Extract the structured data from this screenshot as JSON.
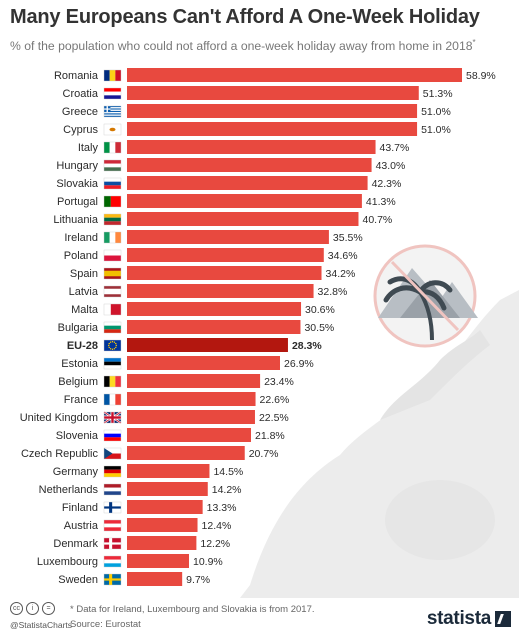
{
  "header": {
    "title": "Many Europeans Can't Afford A One-Week Holiday",
    "subtitle": "% of the population who could not afford a one-week holiday away from home in 2018",
    "subtitle_mark": "*"
  },
  "chart_data": {
    "type": "bar",
    "orientation": "horizontal",
    "xlim": [
      0,
      60
    ],
    "categories": [
      "Romania",
      "Croatia",
      "Greece",
      "Cyprus",
      "Italy",
      "Hungary",
      "Slovakia",
      "Portugal",
      "Lithuania",
      "Ireland",
      "Poland",
      "Spain",
      "Latvia",
      "Malta",
      "Bulgaria",
      "EU-28",
      "Estonia",
      "Belgium",
      "France",
      "United Kingdom",
      "Slovenia",
      "Czech Republic",
      "Germany",
      "Netherlands",
      "Finland",
      "Austria",
      "Denmark",
      "Luxembourg",
      "Sweden"
    ],
    "values": [
      58.9,
      51.3,
      51.0,
      51.0,
      43.7,
      43.0,
      42.3,
      41.3,
      40.7,
      35.5,
      34.6,
      34.2,
      32.8,
      30.6,
      30.5,
      28.3,
      26.9,
      23.4,
      22.6,
      22.5,
      21.8,
      20.7,
      14.5,
      14.2,
      13.3,
      12.4,
      12.2,
      10.9,
      9.7
    ],
    "labels": [
      "58.9%",
      "51.3%",
      "51.0%",
      "51.0%",
      "43.7%",
      "43.0%",
      "42.3%",
      "41.3%",
      "40.7%",
      "35.5%",
      "34.6%",
      "34.2%",
      "32.8%",
      "30.6%",
      "30.5%",
      "28.3%",
      "26.9%",
      "23.4%",
      "22.6%",
      "22.5%",
      "21.8%",
      "20.7%",
      "14.5%",
      "14.2%",
      "13.3%",
      "12.4%",
      "12.2%",
      "10.9%",
      "9.7%"
    ],
    "highlight": "EU-28",
    "bar_color": "#e8493f",
    "highlight_color": "#b3170f"
  },
  "flags": {
    "Romania": {
      "type": "v",
      "colors": [
        "#002b7f",
        "#fcd116",
        "#ce1126"
      ]
    },
    "Croatia": {
      "type": "h",
      "colors": [
        "#ff0000",
        "#ffffff",
        "#171796"
      ]
    },
    "Greece": {
      "type": "greece",
      "colors": [
        "#0d5eaf",
        "#ffffff"
      ]
    },
    "Cyprus": {
      "type": "plain",
      "colors": [
        "#ffffff",
        "#d57800"
      ]
    },
    "Italy": {
      "type": "v",
      "colors": [
        "#009246",
        "#ffffff",
        "#ce2b37"
      ]
    },
    "Hungary": {
      "type": "h",
      "colors": [
        "#ce2939",
        "#ffffff",
        "#477050"
      ]
    },
    "Slovakia": {
      "type": "h",
      "colors": [
        "#ffffff",
        "#0b4ea2",
        "#ee1c25"
      ]
    },
    "Portugal": {
      "type": "v2",
      "colors": [
        "#006600",
        "#ff0000"
      ]
    },
    "Lithuania": {
      "type": "h",
      "colors": [
        "#fdb913",
        "#006a44",
        "#c1272d"
      ]
    },
    "Ireland": {
      "type": "v",
      "colors": [
        "#169b62",
        "#ffffff",
        "#ff883e"
      ]
    },
    "Poland": {
      "type": "h2",
      "colors": [
        "#ffffff",
        "#dc143c"
      ]
    },
    "Spain": {
      "type": "hs",
      "colors": [
        "#aa151b",
        "#f1bf00",
        "#aa151b"
      ]
    },
    "Latvia": {
      "type": "hs",
      "colors": [
        "#9e3039",
        "#ffffff",
        "#9e3039"
      ]
    },
    "Malta": {
      "type": "v2",
      "colors": [
        "#ffffff",
        "#cf142b"
      ]
    },
    "Bulgaria": {
      "type": "h",
      "colors": [
        "#ffffff",
        "#00966e",
        "#d62612"
      ]
    },
    "EU-28": {
      "type": "eu",
      "colors": [
        "#003399",
        "#ffcc00"
      ]
    },
    "Estonia": {
      "type": "h",
      "colors": [
        "#0072ce",
        "#000000",
        "#ffffff"
      ]
    },
    "Belgium": {
      "type": "v",
      "colors": [
        "#000000",
        "#fdda24",
        "#ef3340"
      ]
    },
    "France": {
      "type": "v",
      "colors": [
        "#0055a4",
        "#ffffff",
        "#ef4135"
      ]
    },
    "United Kingdom": {
      "type": "uk",
      "colors": [
        "#012169",
        "#ffffff",
        "#c8102e"
      ]
    },
    "Slovenia": {
      "type": "h",
      "colors": [
        "#ffffff",
        "#0000ff",
        "#ff0000"
      ]
    },
    "Czech Republic": {
      "type": "cz",
      "colors": [
        "#ffffff",
        "#d7141a",
        "#11457e"
      ]
    },
    "Germany": {
      "type": "h",
      "colors": [
        "#000000",
        "#dd0000",
        "#ffce00"
      ]
    },
    "Netherlands": {
      "type": "h",
      "colors": [
        "#ae1c28",
        "#ffffff",
        "#21468b"
      ]
    },
    "Finland": {
      "type": "nordic",
      "colors": [
        "#ffffff",
        "#003580"
      ]
    },
    "Austria": {
      "type": "h",
      "colors": [
        "#ed2939",
        "#ffffff",
        "#ed2939"
      ]
    },
    "Denmark": {
      "type": "nordic",
      "colors": [
        "#c8102e",
        "#ffffff"
      ]
    },
    "Luxembourg": {
      "type": "h",
      "colors": [
        "#ed2939",
        "#ffffff",
        "#00a1de"
      ]
    },
    "Sweden": {
      "type": "nordic",
      "colors": [
        "#006aa7",
        "#fecc00"
      ]
    }
  },
  "footer": {
    "credit": "@StatistaCharts",
    "note": "* Data for Ireland, Luxembourg and Slovakia is from 2017.",
    "source": "Source: Eurostat",
    "brand": "statista"
  },
  "icons": [
    "creative-commons-icon",
    "attribution-icon",
    "no-derivatives-icon",
    "no-holiday-illustration",
    "statista-logo-icon"
  ]
}
